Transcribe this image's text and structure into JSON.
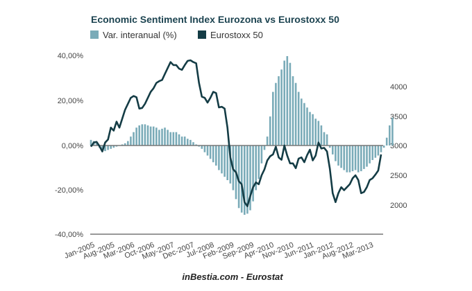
{
  "chart_data": {
    "type": "bar+line",
    "title": "Economic Sentiment Index Eurozona vs Eurostoxx 50",
    "source": "inBestia.com - Eurostat",
    "legend": [
      {
        "label": "Var. interanual (%)",
        "color": "#7aabb8",
        "type": "bar",
        "axis": "left"
      },
      {
        "label": "Eurostoxx 50",
        "color": "#143c45",
        "type": "line",
        "axis": "right"
      }
    ],
    "legend_position": "top-left",
    "x_tick_labels": [
      "Jan-2005",
      "Aug-2005",
      "Mar-2006",
      "Oct-2006",
      "May-2007",
      "Dec-2007",
      "Jul-2008",
      "Feb-2009",
      "Sep-2009",
      "Apr-2010",
      "Nov-2010",
      "Jun-2011",
      "Jan-2012",
      "Aug-2012",
      "Mar-2013"
    ],
    "x_start": "Jan-2005",
    "months": 103,
    "left_axis": {
      "ticks": [
        "40,00%",
        "20,00%",
        "0,00%",
        "-20,00%",
        "-40,00%"
      ],
      "range": [
        -40,
        40
      ]
    },
    "right_axis": {
      "ticks": [
        "4000",
        "3500",
        "3000",
        "2500",
        "2000"
      ],
      "range": [
        1500,
        4200
      ]
    },
    "series": [
      {
        "name": "Var. interanual (%)",
        "values": [
          2.5,
          2,
          1,
          -1,
          -2,
          -2.5,
          -2,
          -1.5,
          -1,
          -0.5,
          0,
          0.5,
          1,
          2,
          4,
          6,
          8,
          9,
          9.5,
          9.5,
          9,
          8.5,
          8.5,
          8,
          7,
          7.5,
          8,
          7,
          6,
          6,
          6,
          5,
          4,
          4,
          3,
          2.5,
          1.5,
          0.5,
          -0.5,
          -1.5,
          -3,
          -4.5,
          -6,
          -7.5,
          -9,
          -11,
          -12.5,
          -14,
          -15.5,
          -17,
          -20,
          -24,
          -28,
          -30,
          -31,
          -30.5,
          -29,
          -25,
          -20,
          -15,
          -8,
          -2,
          4,
          13,
          24,
          28,
          31,
          34,
          38,
          40,
          37,
          31,
          28,
          24,
          21,
          19,
          17,
          15,
          14,
          12,
          11,
          9,
          6,
          5,
          -1,
          -4,
          -7,
          -9,
          -10,
          -11,
          -12,
          -12,
          -11.5,
          -11,
          -12,
          -11.5,
          -10.5,
          -9.5,
          -8,
          -6.5,
          -5.5,
          -4.5,
          -3,
          -1,
          3.5,
          9,
          12.5
        ]
      },
      {
        "name": "Eurostoxx 50",
        "values": [
          2980,
          3050,
          3060,
          2990,
          2900,
          3050,
          3100,
          3300,
          3250,
          3400,
          3300,
          3450,
          3600,
          3700,
          3800,
          3830,
          3810,
          3620,
          3630,
          3700,
          3800,
          3900,
          3960,
          4050,
          4080,
          4100,
          4200,
          4300,
          4400,
          4350,
          4350,
          4290,
          4270,
          4350,
          4420,
          4430,
          4400,
          4380,
          4050,
          3820,
          3800,
          3720,
          3800,
          3900,
          3880,
          3640,
          3650,
          3620,
          3300,
          2800,
          2600,
          2550,
          2400,
          2350,
          2050,
          1980,
          2150,
          2300,
          2380,
          2350,
          2500,
          2600,
          2750,
          2820,
          2850,
          2980,
          2800,
          2760,
          3000,
          2830,
          2700,
          2700,
          2620,
          2780,
          2800,
          2720,
          2840,
          2930,
          2750,
          2830,
          3050,
          2950,
          2960,
          2900,
          2610,
          2200,
          2050,
          2200,
          2300,
          2250,
          2300,
          2350,
          2450,
          2500,
          2420,
          2200,
          2220,
          2300,
          2420,
          2450,
          2510,
          2580,
          2850
        ]
      }
    ]
  }
}
